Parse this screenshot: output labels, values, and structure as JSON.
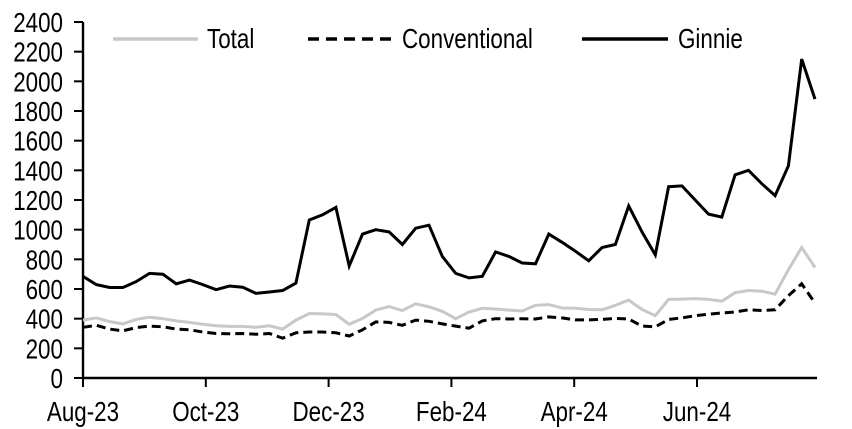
{
  "chart_data": {
    "type": "line",
    "title": "",
    "grid": false,
    "x_axis": {
      "tick_labels": [
        "Aug-23",
        "Oct-23",
        "Dec-23",
        "Feb-24",
        "Apr-24",
        "Jun-24"
      ],
      "frequency": "weekly"
    },
    "y_axis": {
      "min": 0,
      "max": 2400,
      "tick_step": 200,
      "tick_labels": [
        "0",
        "200",
        "400",
        "600",
        "800",
        "1000",
        "1200",
        "1400",
        "1600",
        "1800",
        "2000",
        "2200",
        "2400"
      ]
    },
    "legend": {
      "position": "top",
      "entries": [
        "Total",
        "Conventional",
        "Ginnie"
      ]
    },
    "colors": {
      "total": "#c8c8c8",
      "conventional": "#000000",
      "ginnie": "#000000"
    },
    "series": [
      {
        "name": "Total",
        "line_style": "solid",
        "color": "#c8c8c8",
        "values": [
          390,
          405,
          380,
          365,
          395,
          410,
          400,
          385,
          375,
          362,
          352,
          348,
          348,
          342,
          352,
          330,
          390,
          435,
          432,
          428,
          362,
          402,
          458,
          482,
          455,
          500,
          480,
          450,
          400,
          445,
          470,
          465,
          458,
          452,
          490,
          495,
          472,
          470,
          462,
          460,
          490,
          525,
          462,
          420,
          530,
          532,
          535,
          530,
          518,
          575,
          590,
          585,
          565,
          730,
          880,
          745
        ]
      },
      {
        "name": "Conventional",
        "line_style": "dashed",
        "color": "#000000",
        "values": [
          342,
          355,
          330,
          318,
          340,
          350,
          345,
          330,
          325,
          310,
          300,
          298,
          300,
          295,
          300,
          268,
          305,
          310,
          310,
          305,
          283,
          325,
          378,
          375,
          355,
          390,
          382,
          365,
          350,
          336,
          385,
          400,
          398,
          400,
          398,
          412,
          405,
          392,
          392,
          395,
          402,
          398,
          350,
          345,
          395,
          405,
          420,
          430,
          438,
          445,
          460,
          455,
          460,
          555,
          635,
          505
        ]
      },
      {
        "name": "Ginnie",
        "line_style": "solid",
        "color": "#000000",
        "values": [
          685,
          630,
          610,
          610,
          650,
          705,
          700,
          635,
          660,
          630,
          595,
          620,
          612,
          570,
          580,
          590,
          640,
          1065,
          1100,
          1150,
          755,
          970,
          1000,
          985,
          900,
          1010,
          1030,
          820,
          705,
          675,
          685,
          850,
          820,
          775,
          770,
          970,
          915,
          855,
          790,
          880,
          900,
          1160,
          985,
          830,
          1290,
          1295,
          1200,
          1105,
          1085,
          1370,
          1400,
          1310,
          1230,
          1430,
          2150,
          1880
        ]
      }
    ]
  }
}
